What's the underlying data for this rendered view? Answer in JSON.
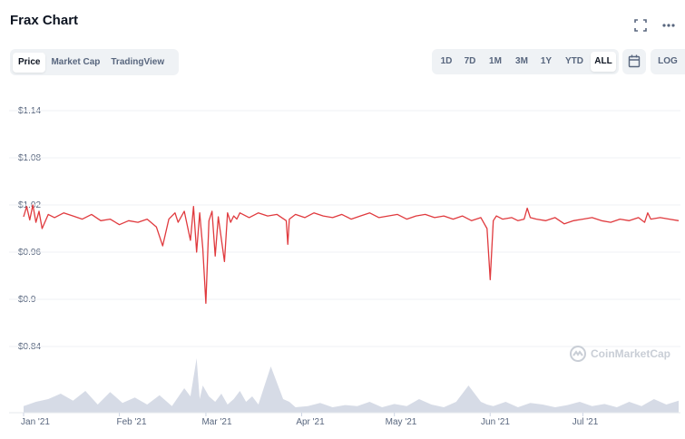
{
  "header": {
    "title": "Frax Chart"
  },
  "tabs": [
    {
      "label": "Price",
      "active": true
    },
    {
      "label": "Market Cap",
      "active": false
    },
    {
      "label": "TradingView",
      "active": false
    }
  ],
  "ranges": [
    {
      "label": "1D",
      "active": false
    },
    {
      "label": "7D",
      "active": false
    },
    {
      "label": "1M",
      "active": false
    },
    {
      "label": "3M",
      "active": false
    },
    {
      "label": "1Y",
      "active": false
    },
    {
      "label": "YTD",
      "active": false
    },
    {
      "label": "ALL",
      "active": true
    }
  ],
  "log_label": "LOG",
  "watermark": "CoinMarketCap",
  "colors": {
    "price_line": "#e03a3e",
    "volume_fill": "#d6dbe6",
    "accent": "#0d1421"
  },
  "chart_data": {
    "type": "line",
    "y_ticks": [
      "$1.14",
      "$1.08",
      "$1.02",
      "$0.96",
      "$0.9",
      "$0.84"
    ],
    "y_tick_values": [
      1.14,
      1.08,
      1.02,
      0.96,
      0.9,
      0.84
    ],
    "ylim": [
      0.84,
      1.14
    ],
    "x_ticks": [
      "Jan '21",
      "Feb '21",
      "Mar '21",
      "Apr '21",
      "May '21",
      "Jun '21",
      "Jul '21"
    ],
    "x_tick_days": [
      0,
      31,
      59,
      90,
      120,
      151,
      181
    ],
    "xlim": [
      0,
      212
    ],
    "grid": true,
    "series": [
      {
        "role": "price",
        "x": [
          0,
          1,
          2,
          3,
          4,
          5,
          6,
          8,
          10,
          13,
          16,
          19,
          22,
          25,
          28,
          31,
          34,
          37,
          40,
          43,
          45,
          47,
          49,
          50,
          52,
          54,
          55,
          56,
          57,
          58,
          59,
          60,
          61,
          62,
          63,
          65,
          66,
          67,
          68,
          69,
          70,
          73,
          76,
          79,
          82,
          85,
          85.5,
          86,
          88,
          91,
          94,
          97,
          100,
          103,
          106,
          109,
          112,
          115,
          118,
          121,
          124,
          127,
          130,
          133,
          136,
          139,
          142,
          145,
          148,
          150,
          151,
          152,
          153,
          155,
          158,
          160,
          162,
          163,
          164,
          166,
          169,
          172,
          175,
          178,
          181,
          184,
          187,
          190,
          193,
          196,
          199,
          201,
          202,
          203,
          206,
          209,
          212
        ],
        "y": [
          1.005,
          1.018,
          1.001,
          1.02,
          0.998,
          1.012,
          0.99,
          1.008,
          1.004,
          1.01,
          1.006,
          1.002,
          1.008,
          1.0,
          1.002,
          0.995,
          1.0,
          0.998,
          1.002,
          0.992,
          0.968,
          1.002,
          1.01,
          0.998,
          1.012,
          0.975,
          1.018,
          0.96,
          1.01,
          0.965,
          0.895,
          1.0,
          1.012,
          0.955,
          1.005,
          0.948,
          1.01,
          0.998,
          1.006,
          1.002,
          1.01,
          1.004,
          1.01,
          1.006,
          1.008,
          1.0,
          0.97,
          1.002,
          1.008,
          1.004,
          1.01,
          1.006,
          1.004,
          1.008,
          1.002,
          1.006,
          1.01,
          1.004,
          1.006,
          1.008,
          1.002,
          1.006,
          1.008,
          1.004,
          1.006,
          1.002,
          1.006,
          1.0,
          1.004,
          0.99,
          0.925,
          1.0,
          1.006,
          1.002,
          1.004,
          1.0,
          1.002,
          1.016,
          1.004,
          1.002,
          1.0,
          1.004,
          0.996,
          1.0,
          1.002,
          1.004,
          1.0,
          0.998,
          1.002,
          1.0,
          1.004,
          0.998,
          1.01,
          1.002,
          1.004,
          1.002,
          1.0
        ]
      },
      {
        "role": "volume",
        "x": [
          0,
          4,
          8,
          12,
          16,
          20,
          24,
          28,
          32,
          36,
          40,
          44,
          48,
          52,
          54,
          56,
          57,
          58,
          60,
          62,
          64,
          66,
          68,
          70,
          72,
          74,
          76,
          78,
          80,
          84,
          86,
          88,
          92,
          96,
          100,
          104,
          108,
          112,
          116,
          120,
          124,
          128,
          132,
          136,
          140,
          144,
          148,
          150,
          152,
          156,
          160,
          164,
          168,
          172,
          176,
          180,
          184,
          188,
          192,
          196,
          200,
          204,
          208,
          212
        ],
        "y": [
          0.12,
          0.2,
          0.25,
          0.35,
          0.22,
          0.4,
          0.15,
          0.38,
          0.18,
          0.28,
          0.15,
          0.32,
          0.12,
          0.45,
          0.3,
          1.0,
          0.25,
          0.5,
          0.3,
          0.2,
          0.35,
          0.15,
          0.25,
          0.4,
          0.2,
          0.3,
          0.15,
          0.5,
          0.85,
          0.25,
          0.2,
          0.1,
          0.12,
          0.18,
          0.1,
          0.14,
          0.12,
          0.2,
          0.1,
          0.16,
          0.12,
          0.25,
          0.15,
          0.1,
          0.2,
          0.5,
          0.2,
          0.15,
          0.12,
          0.2,
          0.1,
          0.18,
          0.15,
          0.1,
          0.14,
          0.2,
          0.12,
          0.16,
          0.1,
          0.2,
          0.12,
          0.25,
          0.15,
          0.22
        ]
      }
    ]
  }
}
